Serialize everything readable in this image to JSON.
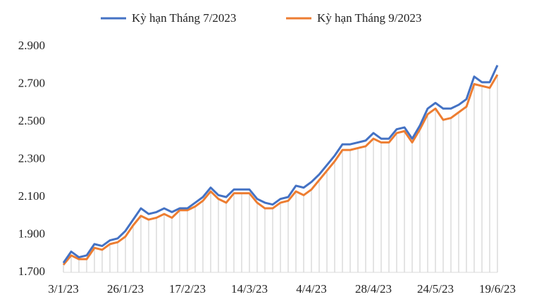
{
  "chart_data": {
    "type": "line",
    "categories": [
      "3/1/23",
      null,
      null,
      null,
      null,
      null,
      null,
      null,
      "26/1/23",
      null,
      null,
      null,
      null,
      null,
      null,
      null,
      "17/2/23",
      null,
      null,
      null,
      null,
      null,
      null,
      null,
      "14/3/23",
      null,
      null,
      null,
      null,
      null,
      null,
      null,
      "4/4/23",
      null,
      null,
      null,
      null,
      null,
      null,
      null,
      "28/4/23",
      null,
      null,
      null,
      null,
      null,
      null,
      null,
      "24/5/23",
      null,
      null,
      null,
      null,
      null,
      null,
      null,
      "19/6/23"
    ],
    "series": [
      {
        "name": "Kỳ hạn Tháng 7/2023",
        "color": "#4472c4",
        "values": [
          1750,
          1810,
          1780,
          1790,
          1850,
          1840,
          1870,
          1880,
          1920,
          1980,
          2040,
          2010,
          2020,
          2040,
          2020,
          2040,
          2040,
          2070,
          2100,
          2150,
          2110,
          2100,
          2140,
          2140,
          2140,
          2090,
          2070,
          2060,
          2090,
          2100,
          2160,
          2150,
          2180,
          2220,
          2270,
          2320,
          2380,
          2380,
          2390,
          2400,
          2440,
          2410,
          2410,
          2460,
          2470,
          2410,
          2480,
          2570,
          2600,
          2570,
          2570,
          2590,
          2620,
          2740,
          2710,
          2710,
          2800
        ]
      },
      {
        "name": "Kỳ hạn Tháng 9/2023",
        "color": "#ed7d31",
        "values": [
          1740,
          1790,
          1770,
          1770,
          1830,
          1820,
          1850,
          1860,
          1890,
          1950,
          2000,
          1980,
          1990,
          2010,
          1990,
          2030,
          2030,
          2050,
          2080,
          2130,
          2090,
          2070,
          2120,
          2120,
          2120,
          2070,
          2040,
          2040,
          2070,
          2080,
          2130,
          2110,
          2140,
          2190,
          2240,
          2290,
          2350,
          2350,
          2360,
          2370,
          2410,
          2390,
          2390,
          2440,
          2450,
          2390,
          2460,
          2540,
          2570,
          2510,
          2520,
          2550,
          2580,
          2700,
          2690,
          2680,
          2750
        ]
      }
    ],
    "ylim": [
      1700,
      2900
    ],
    "yticks": [
      {
        "value": 1700,
        "label": "1.700"
      },
      {
        "value": 1900,
        "label": "1.900"
      },
      {
        "value": 2100,
        "label": "2.100"
      },
      {
        "value": 2300,
        "label": "2.300"
      },
      {
        "value": 2500,
        "label": "2.500"
      },
      {
        "value": 2700,
        "label": "2.700"
      },
      {
        "value": 2900,
        "label": "2.900"
      }
    ],
    "legend": "top"
  }
}
